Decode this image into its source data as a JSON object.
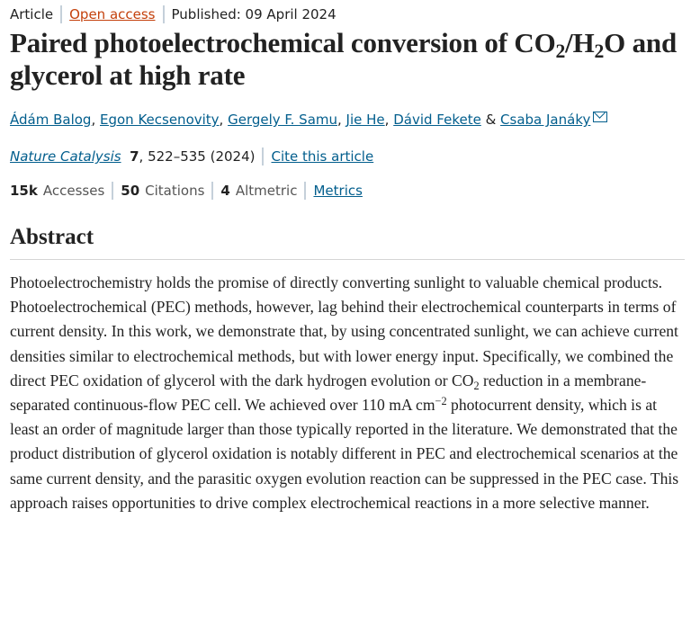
{
  "meta": {
    "type": "Article",
    "open_access": "Open access",
    "published": "Published: 09 April 2024"
  },
  "title": {
    "p1": "Paired photoelectrochemical conversion of CO",
    "s1": "2",
    "p2": "/H",
    "s2": "2",
    "p3": "O and glycerol at high rate"
  },
  "authors": [
    "Ádám Balog",
    "Egon Kecsenovity",
    "Gergely F. Samu",
    "Jie He",
    "Dávid Fekete",
    "Csaba Janáky"
  ],
  "author_sep": ", ",
  "author_amp": " & ",
  "citation": {
    "journal": "Nature Catalysis",
    "volume": "7",
    "pages": ", 522–535 (2024)",
    "cite_link": "Cite this article"
  },
  "metrics": {
    "accesses_value": "15k",
    "accesses_label": "Accesses",
    "citations_value": "50",
    "citations_label": "Citations",
    "altmetric_value": "4",
    "altmetric_label": "Altmetric",
    "metrics_link": "Metrics"
  },
  "abstract": {
    "heading": "Abstract",
    "t1": "Photoelectrochemistry holds the promise of directly converting sunlight to valuable chemical products. Photoelectrochemical (PEC) methods, however, lag behind their electrochemical counterparts in terms of current density. In this work, we demonstrate that, by using concentrated sunlight, we can achieve current densities similar to electrochemical methods, but with lower energy input. Specifically, we combined the direct PEC oxidation of glycerol with the dark hydrogen evolution or CO",
    "t1sub": "2",
    "t2": " reduction in a membrane-separated continuous-flow PEC cell. We achieved over 110 mA cm",
    "t2sup": "−2",
    "t3": " photocurrent density, which is at least an order of magnitude larger than those typically reported in the literature. We demonstrated that the product distribution of glycerol oxidation is notably different in PEC and electrochemical scenarios at the same current density, and the parasitic oxygen evolution reaction can be suppressed in the PEC case. This approach raises opportunities to drive complex electrochemical reactions in a more selective manner."
  },
  "colors": {
    "link": "#025e8d",
    "open_access": "#c4410c"
  },
  "icons": {
    "corresponding_author": "mail-icon"
  }
}
